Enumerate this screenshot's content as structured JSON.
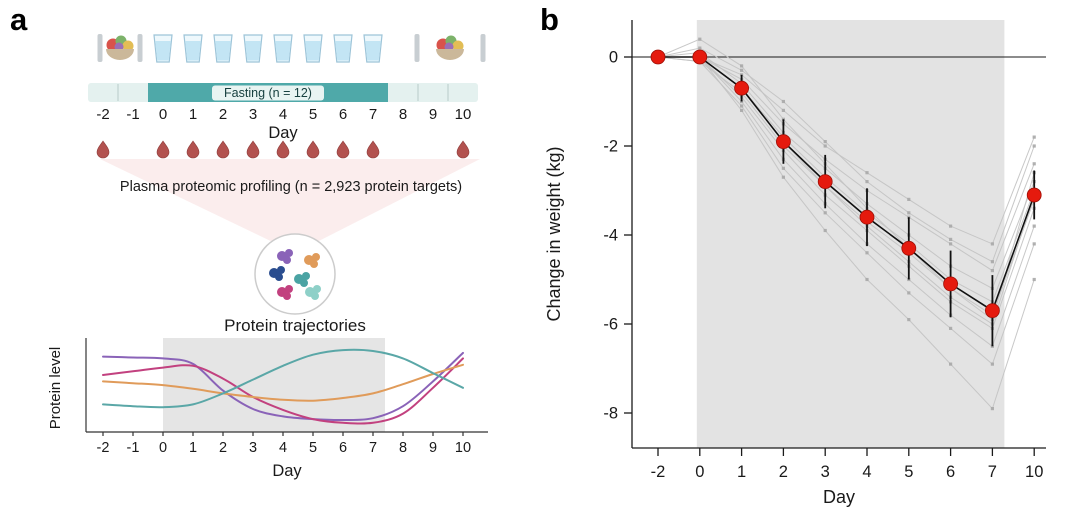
{
  "figure": {
    "background": "#ffffff",
    "accent_red": "#e51a0e",
    "fasting_teal": "#4fa9a9",
    "shaded_gray": "#e3e3e3"
  },
  "panel_a": {
    "label": "a",
    "schematic": {
      "fasting_label": "Fasting (n = 12)",
      "day_ticks": [
        -2,
        -1,
        0,
        1,
        2,
        3,
        4,
        5,
        6,
        7,
        8,
        9,
        10
      ],
      "day_axis_label": "Day",
      "water_glass_days": [
        0,
        1,
        2,
        3,
        4,
        5,
        6,
        7
      ],
      "blood_sample_days": [
        -2,
        0,
        1,
        2,
        3,
        4,
        5,
        6,
        7,
        10
      ],
      "profiling_label": "Plasma proteomic profiling (n = 2,923 protein targets)",
      "icons": {
        "food": "food-plate-icon",
        "water": "water-glass-icon",
        "blood": "blood-drop-icon",
        "proteins": "protein-molecules-icon"
      }
    },
    "trajectories_title": "Protein trajectories"
  },
  "panel_b": {
    "label": "b"
  },
  "chart_data": [
    {
      "id": "protein_trajectories",
      "type": "line",
      "title": "Protein trajectories",
      "xlabel": "Day",
      "ylabel": "Protein level",
      "x": [
        -2,
        -1,
        0,
        1,
        2,
        3,
        4,
        5,
        6,
        7,
        8,
        9,
        10
      ],
      "x_ticks": [
        -2,
        -1,
        0,
        1,
        2,
        3,
        4,
        5,
        6,
        7,
        8,
        9,
        10
      ],
      "shaded_x_range": [
        0,
        7
      ],
      "ylim": [
        0,
        1
      ],
      "grid": false,
      "series": [
        {
          "name": "protein-purple",
          "color": "#8a63b8",
          "values": [
            0.82,
            0.81,
            0.8,
            0.74,
            0.45,
            0.25,
            0.17,
            0.14,
            0.13,
            0.15,
            0.28,
            0.55,
            0.86
          ]
        },
        {
          "name": "protein-magenta",
          "color": "#c2417f",
          "values": [
            0.62,
            0.66,
            0.7,
            0.72,
            0.58,
            0.38,
            0.24,
            0.14,
            0.1,
            0.1,
            0.2,
            0.48,
            0.8
          ]
        },
        {
          "name": "protein-orange",
          "color": "#e09b5a",
          "values": [
            0.55,
            0.53,
            0.51,
            0.47,
            0.42,
            0.38,
            0.35,
            0.34,
            0.37,
            0.42,
            0.52,
            0.63,
            0.73
          ]
        },
        {
          "name": "protein-teal",
          "color": "#5aa7a7",
          "values": [
            0.3,
            0.28,
            0.27,
            0.3,
            0.42,
            0.57,
            0.72,
            0.84,
            0.89,
            0.88,
            0.8,
            0.64,
            0.48
          ]
        }
      ]
    },
    {
      "id": "weight_change",
      "type": "line+scatter",
      "xlabel": "Day",
      "ylabel": "Change in weight (kg)",
      "x_ticks": [
        -2,
        0,
        1,
        2,
        3,
        4,
        5,
        6,
        7,
        10
      ],
      "y_ticks": [
        0,
        -2,
        -4,
        -6,
        -8
      ],
      "ylim": [
        -8.8,
        0.8
      ],
      "shaded_x_range": [
        0,
        7
      ],
      "grid": false,
      "mean": {
        "name": "mean-weight-change",
        "color": "#e51a0e",
        "values": [
          0,
          0,
          -0.7,
          -1.9,
          -2.8,
          -3.6,
          -4.3,
          -5.1,
          -5.7,
          -3.1
        ],
        "errors": [
          0,
          0,
          0.3,
          0.5,
          0.6,
          0.65,
          0.7,
          0.75,
          0.8,
          0.55
        ]
      },
      "individuals": {
        "color": "#c2c2c2",
        "series": [
          [
            0,
            0,
            -0.4,
            -1.2,
            -2.0,
            -2.6,
            -3.2,
            -3.8,
            -4.2,
            -1.8
          ],
          [
            0,
            0,
            -0.5,
            -1.5,
            -2.3,
            -3.0,
            -3.6,
            -4.2,
            -4.8,
            -2.4
          ],
          [
            0,
            0.1,
            -0.6,
            -1.7,
            -2.5,
            -3.3,
            -4.0,
            -4.7,
            -5.2,
            -2.8
          ],
          [
            0,
            0,
            -0.7,
            -1.8,
            -2.7,
            -3.5,
            -4.2,
            -5.0,
            -5.5,
            -3.0
          ],
          [
            0,
            -0.1,
            -0.8,
            -2.0,
            -2.9,
            -3.7,
            -4.4,
            -5.2,
            -5.8,
            -3.2
          ],
          [
            0,
            0,
            -0.9,
            -2.1,
            -3.1,
            -3.9,
            -4.7,
            -5.5,
            -6.1,
            -3.4
          ],
          [
            0,
            0.2,
            -0.3,
            -1.0,
            -1.9,
            -2.8,
            -3.5,
            -4.1,
            -4.6,
            -2.0
          ],
          [
            0,
            0,
            -1.0,
            -2.3,
            -3.3,
            -4.2,
            -5.0,
            -5.8,
            -6.5,
            -3.8
          ],
          [
            0,
            -0.1,
            -1.1,
            -2.5,
            -3.5,
            -4.4,
            -5.3,
            -6.1,
            -6.9,
            -4.2
          ],
          [
            0,
            0,
            -0.7,
            -1.9,
            -2.9,
            -3.8,
            -4.6,
            -5.4,
            -6.0,
            -3.1
          ],
          [
            0,
            0.4,
            -0.2,
            -1.4,
            -2.4,
            -3.4,
            -4.3,
            -5.2,
            -5.9,
            -2.6
          ],
          [
            0,
            0,
            -1.2,
            -2.7,
            -3.9,
            -5.0,
            -5.9,
            -6.9,
            -7.9,
            -5.0
          ]
        ]
      }
    }
  ]
}
